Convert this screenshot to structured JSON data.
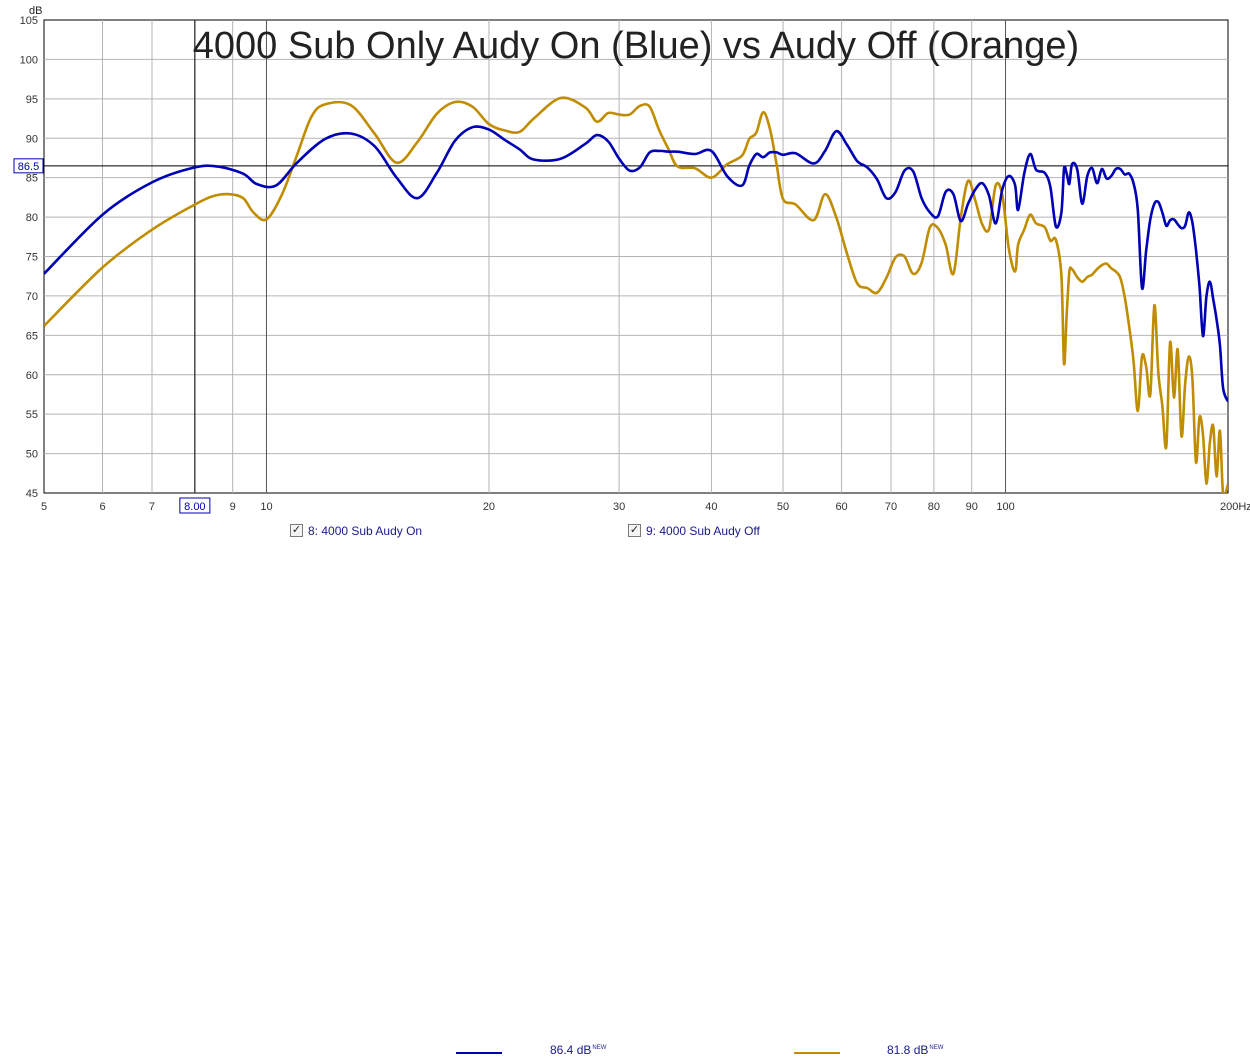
{
  "chart_data": {
    "type": "line",
    "title": "4000 Sub Only Audy On (Blue) vs Audy Off (Orange)",
    "ylabel": "dB",
    "xunit": "Hz",
    "xscale": "log",
    "xlim": [
      5,
      200
    ],
    "ylim": [
      45,
      105
    ],
    "xticks": [
      5,
      6,
      7,
      8,
      9,
      10,
      20,
      30,
      40,
      50,
      60,
      70,
      80,
      90,
      100,
      200
    ],
    "xtick_labels": [
      "5",
      "6",
      "7",
      "8.00",
      "9",
      "10",
      "20",
      "30",
      "40",
      "50",
      "60",
      "70",
      "80",
      "90",
      "100",
      "200Hz"
    ],
    "yticks": [
      45,
      50,
      55,
      60,
      65,
      70,
      75,
      80,
      85,
      90,
      95,
      100,
      105
    ],
    "cursor": {
      "x": 8.0,
      "x_label": "8.00",
      "y": 86.5,
      "y_label": "86.5"
    },
    "grid": true,
    "series": [
      {
        "name": "8: 4000 Sub Audy On",
        "color": "#0000b4",
        "legend_value": "86.4 dB",
        "legend_badge": "NEW",
        "x": [
          5,
          6,
          7,
          8,
          8.6,
          9.3,
          9.7,
          10.3,
          11,
          12,
          13,
          14,
          15,
          16,
          17,
          18,
          19,
          20,
          21,
          22,
          23,
          25,
          27,
          28,
          29,
          30,
          31,
          32,
          33,
          34,
          35,
          36,
          38,
          40,
          42,
          44,
          45,
          46,
          47,
          48,
          49,
          50,
          52,
          55,
          57,
          59,
          61,
          63,
          65,
          67,
          69,
          71,
          73,
          75,
          77,
          79,
          81,
          83,
          85,
          87,
          89,
          91,
          93,
          95,
          97,
          99,
          101,
          103,
          104,
          106,
          108,
          110,
          113,
          115,
          117,
          119,
          120,
          121,
          122,
          123,
          125,
          127,
          129,
          131,
          133,
          135,
          137,
          139,
          141,
          143,
          145,
          147,
          149,
          151,
          153,
          155,
          157,
          159,
          161,
          163,
          165,
          167,
          169,
          171,
          173,
          175,
          177,
          179,
          181,
          183,
          185,
          187,
          189,
          191,
          193,
          195,
          197,
          200
        ],
        "y": [
          72.8,
          80.3,
          84.4,
          86.3,
          86.4,
          85.5,
          84.2,
          84.0,
          86.9,
          89.9,
          90.6,
          89.0,
          85.0,
          82.4,
          85.6,
          89.7,
          91.4,
          91.1,
          89.8,
          88.6,
          87.3,
          87.4,
          89.3,
          90.4,
          89.6,
          87.4,
          85.9,
          86.3,
          88.2,
          88.4,
          88.3,
          88.3,
          88.0,
          88.4,
          85.2,
          84.0,
          86.5,
          88.0,
          87.6,
          88.2,
          88.2,
          87.9,
          88.1,
          86.8,
          88.4,
          90.9,
          89.2,
          87.1,
          86.3,
          84.8,
          82.4,
          83.2,
          85.9,
          85.8,
          82.4,
          80.6,
          80.1,
          83.2,
          82.9,
          79.5,
          81.7,
          83.5,
          84.3,
          82.7,
          79.2,
          83.5,
          85.2,
          84.1,
          80.9,
          85.5,
          88.0,
          86.0,
          85.6,
          83.8,
          78.8,
          80.6,
          86.1,
          85.5,
          84.2,
          86.7,
          86.1,
          81.7,
          85.2,
          86.2,
          84.3,
          86.1,
          84.9,
          85.2,
          86.1,
          86.1,
          85.4,
          85.5,
          84.3,
          80.9,
          71.0,
          75.8,
          79.7,
          81.7,
          81.9,
          80.6,
          78.9,
          79.6,
          79.7,
          79.1,
          78.6,
          78.9,
          80.6,
          79.3,
          75.8,
          71.2,
          64.9,
          69.9,
          71.8,
          69.6,
          67.0,
          63.8,
          58.3,
          56.6
        ]
      },
      {
        "name": "9: 4000 Sub Audy Off",
        "color": "#c08c00",
        "legend_value": "81.8 dB",
        "legend_badge": "NEW",
        "x": [
          5,
          6,
          7,
          8,
          8.5,
          8.9,
          9.3,
          9.6,
          10,
          10.5,
          11,
          11.5,
          12,
          13,
          14,
          15,
          16,
          17,
          18,
          19,
          20,
          21,
          22,
          23,
          25,
          27,
          28,
          29,
          30,
          31,
          32,
          33,
          34,
          35,
          36,
          38,
          40,
          42,
          44,
          45,
          46,
          47,
          48,
          49,
          50,
          52,
          55,
          57,
          59,
          61,
          63,
          65,
          67,
          69,
          71,
          73,
          75,
          77,
          79,
          81,
          83,
          85,
          87,
          89,
          91,
          93,
          95,
          97,
          99,
          101,
          103,
          104,
          106,
          108,
          110,
          113,
          115,
          117,
          119,
          120,
          121,
          122,
          123,
          125,
          127,
          129,
          131,
          133,
          135,
          137,
          139,
          141,
          143,
          145,
          147,
          149,
          151,
          153,
          155,
          157,
          159,
          161,
          163,
          165,
          167,
          169,
          171,
          173,
          175,
          177,
          179,
          181,
          183,
          185,
          187,
          189,
          191,
          193,
          195,
          197,
          200
        ],
        "y": [
          66.2,
          73.6,
          78.4,
          81.6,
          82.7,
          82.9,
          82.4,
          80.6,
          79.7,
          82.9,
          87.9,
          92.7,
          94.3,
          94.2,
          90.6,
          86.9,
          89.5,
          93.1,
          94.6,
          94.0,
          91.8,
          91.0,
          90.8,
          92.5,
          95.1,
          93.9,
          92.1,
          93.2,
          93.0,
          93.0,
          94.1,
          94.0,
          91.0,
          88.6,
          86.4,
          86.2,
          85.0,
          86.7,
          87.8,
          89.9,
          90.7,
          93.3,
          91.2,
          86.7,
          82.3,
          81.6,
          79.6,
          82.9,
          80.0,
          75.4,
          71.6,
          71.0,
          70.4,
          72.3,
          74.9,
          75.0,
          72.8,
          74.2,
          78.7,
          78.6,
          76.5,
          72.8,
          80.0,
          84.6,
          82.1,
          79.1,
          78.5,
          84.0,
          82.8,
          76.1,
          73.1,
          76.5,
          78.4,
          80.3,
          79.2,
          78.7,
          77.0,
          77.1,
          72.6,
          61.4,
          67.7,
          73.0,
          73.4,
          72.4,
          71.8,
          72.4,
          72.7,
          73.4,
          73.9,
          74.1,
          73.5,
          73.1,
          72.3,
          69.8,
          66.1,
          61.8,
          55.4,
          62.3,
          61.0,
          57.5,
          68.8,
          60.2,
          56.1,
          50.9,
          64.1,
          57.1,
          63.2,
          52.2,
          58.8,
          62.3,
          59.5,
          48.9,
          54.6,
          52.4,
          46.2,
          51.3,
          53.5,
          47.1,
          52.9,
          44.9,
          46.1
        ]
      }
    ]
  }
}
